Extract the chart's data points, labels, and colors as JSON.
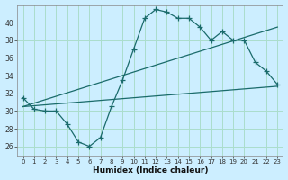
{
  "xlabel": "Humidex (Indice chaleur)",
  "bg_color": "#cceeff",
  "grid_color": "#aaddcc",
  "line_color": "#1a6b6b",
  "xlim": [
    -0.5,
    23.5
  ],
  "ylim": [
    25,
    42
  ],
  "yticks": [
    26,
    28,
    30,
    32,
    34,
    36,
    38,
    40
  ],
  "xticks": [
    0,
    1,
    2,
    3,
    4,
    5,
    6,
    7,
    8,
    9,
    10,
    11,
    12,
    13,
    14,
    15,
    16,
    17,
    18,
    19,
    20,
    21,
    22,
    23
  ],
  "curve_x": [
    0,
    1,
    2,
    3,
    4,
    5,
    6,
    7,
    8,
    9,
    10,
    11,
    12,
    13,
    14,
    15,
    16,
    17,
    18,
    19,
    20,
    21,
    22,
    23
  ],
  "curve_y": [
    31.5,
    30.2,
    30.0,
    30.0,
    28.5,
    26.5,
    26.0,
    27.0,
    30.5,
    33.5,
    37.0,
    40.5,
    41.5,
    41.2,
    40.5,
    40.5,
    39.5,
    38.0,
    39.0,
    38.0,
    38.0,
    35.5,
    34.5,
    33.0
  ],
  "line1_x": [
    0,
    23
  ],
  "line1_y": [
    30.5,
    32.8
  ],
  "line2_x": [
    0,
    23
  ],
  "line2_y": [
    30.5,
    39.5
  ]
}
